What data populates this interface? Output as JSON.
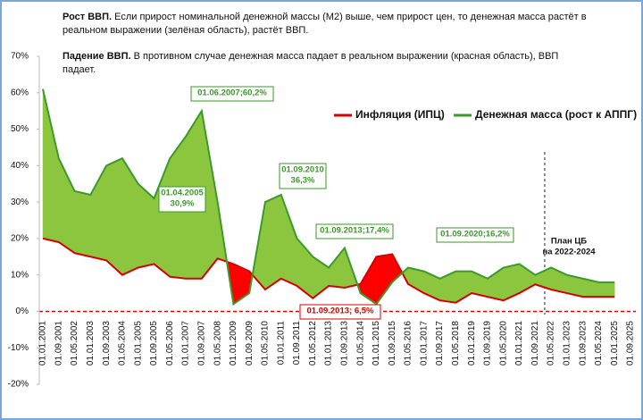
{
  "notes": [
    {
      "bold": "Рост ВВП.",
      "text": " Если прирост номинальной денежной массы (М2) выше, чем прирост цен,  то денежная масса растёт в реальном выражении (зелёная область), растёт ВВП."
    },
    {
      "bold": "Падение ВВП.",
      "text": " В противном случае денежная масса падает в реальном выражении (красная область), ВВП падает."
    }
  ],
  "chart_data": {
    "type": "line",
    "categories": [
      "01.01.2001",
      "01.09.2001",
      "01.05.2002",
      "01.01.2003",
      "01.09.2003",
      "01.05.2004",
      "01.01.2005",
      "01.09.2005",
      "01.05.2006",
      "01.01.2007",
      "01.09.2007",
      "01.05.2008",
      "01.01.2009",
      "01.09.2009",
      "01.05.2010",
      "01.01.2011",
      "01.09.2011",
      "01.05.2012",
      "01.01.2013",
      "01.09.2013",
      "01.05.2014",
      "01.01.2015",
      "01.09.2015",
      "01.05.2016",
      "01.01.2017",
      "01.09.2017",
      "01.05.2018",
      "01.01.2019",
      "01.09.2019",
      "01.05.2020",
      "01.01.2021",
      "01.09.2021",
      "01.05.2022",
      "01.01.2023",
      "01.09.2023",
      "01.05.2024",
      "01.01.2025",
      "01.09.2025"
    ],
    "series": [
      {
        "name": "Инфляция (ИПЦ)",
        "color": "#d40000",
        "values": [
          20,
          19,
          16,
          15,
          14,
          10,
          12,
          13,
          9.5,
          9,
          9,
          14.5,
          13,
          11,
          6,
          9,
          7,
          3.6,
          7,
          6.5,
          7.5,
          15,
          15.7,
          7.5,
          5,
          3,
          2.4,
          5,
          4,
          3,
          5,
          7.4,
          6,
          5,
          4,
          4,
          4,
          null
        ]
      },
      {
        "name": "Денежная масса (рост к АППГ)",
        "color": "#3a9a2a",
        "values": [
          61,
          42,
          33,
          32,
          40,
          42,
          35,
          31,
          42,
          48,
          55,
          30,
          2,
          5,
          30,
          32,
          20,
          15,
          12,
          17.4,
          5,
          2,
          8,
          12,
          11,
          9,
          11,
          11,
          9,
          12,
          13,
          10,
          12,
          10,
          9,
          8,
          8,
          null
        ]
      }
    ],
    "ylim": [
      -20,
      70
    ],
    "yticks": [
      {
        "value": -20,
        "label": "-20%"
      },
      {
        "value": -10,
        "label": "-10%"
      },
      {
        "value": 0,
        "label": "0%"
      },
      {
        "value": 10,
        "label": "10%"
      },
      {
        "value": 20,
        "label": "20%"
      },
      {
        "value": 30,
        "label": "30%"
      },
      {
        "value": 40,
        "label": "40%"
      },
      {
        "value": 50,
        "label": "50%"
      },
      {
        "value": 60,
        "label": "60%"
      },
      {
        "value": 70,
        "label": "70%"
      }
    ],
    "zero_line": true,
    "legend": "top-right",
    "annotations": [
      {
        "lines": [
          "01.06.2007;60,2%"
        ],
        "color": "#3a9a2a"
      },
      {
        "lines": [
          "01.04.2005",
          "30,9%"
        ],
        "color": "#3a9a2a"
      },
      {
        "lines": [
          "01.09.2010",
          "36,3%"
        ],
        "color": "#3a9a2a"
      },
      {
        "lines": [
          "01.09.2013;17,4%"
        ],
        "color": "#3a9a2a"
      },
      {
        "lines": [
          "01.09.2020;16,2%"
        ],
        "color": "#3a9a2a"
      },
      {
        "lines": [
          "01.09.2013; 6,5%"
        ],
        "color": "#d40000"
      },
      {
        "lines": [
          "План ЦБ",
          "на 2022-2024"
        ],
        "color": null
      }
    ]
  }
}
